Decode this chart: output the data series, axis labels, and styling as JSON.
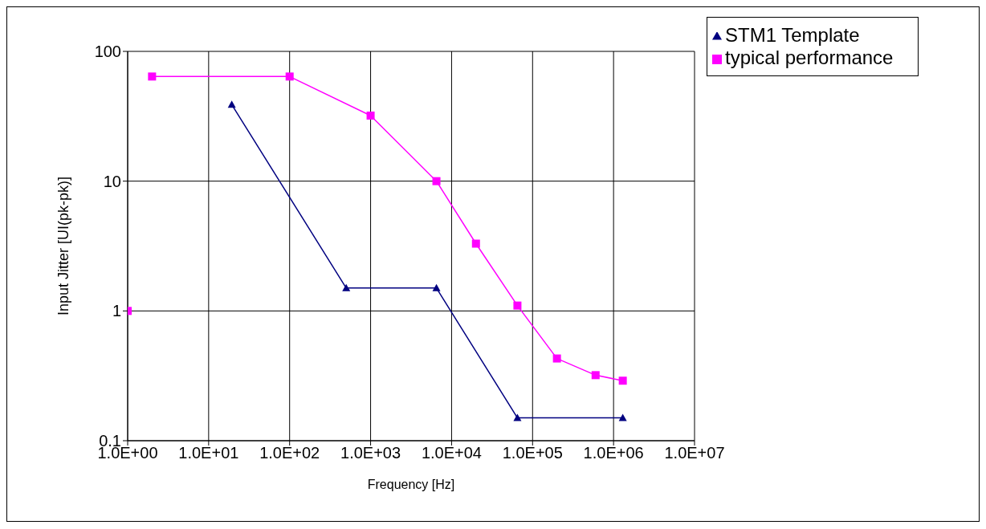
{
  "chart_data": {
    "type": "line",
    "xlabel": "Frequency [Hz]",
    "ylabel": "Input Jitter [UI(pk-pk)]",
    "log": "xy",
    "grid": true,
    "legend": "top right",
    "xlim": [
      1,
      10000000
    ],
    "ylim": [
      0.1,
      100
    ],
    "xticks": [
      {
        "value": 1,
        "label": "1.0E+00"
      },
      {
        "value": 10,
        "label": "1.0E+01"
      },
      {
        "value": 100,
        "label": "1.0E+02"
      },
      {
        "value": 1000,
        "label": "1.0E+03"
      },
      {
        "value": 10000,
        "label": "1.0E+04"
      },
      {
        "value": 100000,
        "label": "1.0E+05"
      },
      {
        "value": 1000000,
        "label": "1.0E+06"
      },
      {
        "value": 10000000,
        "label": "1.0E+07"
      }
    ],
    "yticks": [
      0.1,
      1,
      10,
      100
    ],
    "series": [
      {
        "name": "STM1 Template",
        "color": "#000080",
        "marker": "triangle",
        "x": [
          19.3,
          500,
          6500,
          65000,
          1300000
        ],
        "values": [
          38.9,
          1.5,
          1.5,
          0.15,
          0.15
        ]
      },
      {
        "name": "typical performance",
        "color": "#ff00ff",
        "marker": "square",
        "x": [
          2,
          100,
          1000,
          6500,
          20000,
          65000,
          200000,
          600000,
          1300000
        ],
        "values": [
          64,
          64,
          32,
          10,
          3.3,
          1.1,
          0.43,
          0.32,
          0.29
        ]
      },
      {
        "type": "scatter",
        "color": "#ff00ff",
        "marker": "square",
        "x": [
          1
        ],
        "values": [
          1
        ]
      }
    ]
  }
}
